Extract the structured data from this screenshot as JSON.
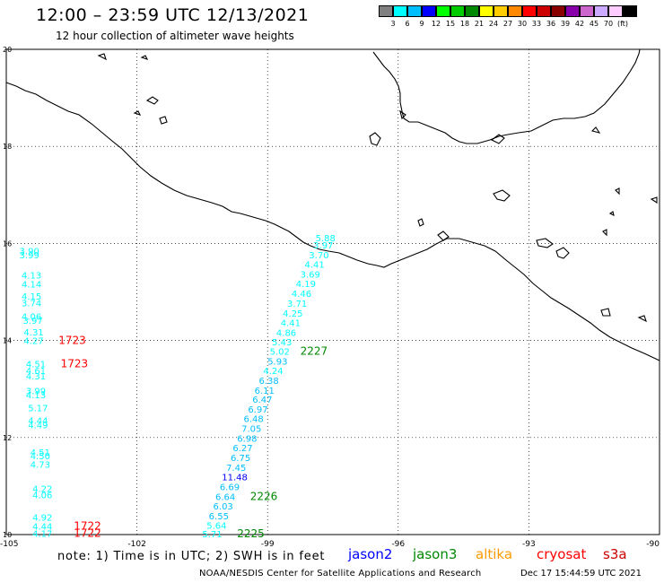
{
  "title": "12:00 – 23:59 UTC 12/13/2021",
  "subtitle": "12 hour collection of altimeter wave heights",
  "colorbar": {
    "colors": [
      "#808080",
      "#00ffff",
      "#00bfff",
      "#0000ff",
      "#00ff00",
      "#00cc00",
      "#008800",
      "#ffff00",
      "#ffcc00",
      "#ff8800",
      "#ff0000",
      "#cc0000",
      "#880000",
      "#8800aa",
      "#cc66cc",
      "#ccaaff",
      "#ffccff",
      "#000000"
    ],
    "labels": [
      "3",
      "6",
      "9",
      "12",
      "15",
      "18",
      "21",
      "24",
      "27",
      "30",
      "33",
      "36",
      "39",
      "42",
      "45",
      "70",
      "(ft)"
    ]
  },
  "map": {
    "lat_labels": [
      "20",
      "18",
      "16",
      "14",
      "12",
      "10"
    ],
    "lon_labels": [
      "-105",
      "-102",
      "-99",
      "-96",
      "-93",
      "-90"
    ],
    "lat_values": [
      20,
      18,
      16,
      14,
      12,
      10
    ],
    "lon_values": [
      -105,
      -102,
      -99,
      -96,
      -93,
      -90
    ]
  },
  "observations": [
    {
      "text": "3.90",
      "lat": 15.85,
      "lon": -104.7,
      "color": "#00ffff"
    },
    {
      "text": "3.99",
      "lat": 15.77,
      "lon": -104.7,
      "color": "#00ffff"
    },
    {
      "text": "4.13",
      "lat": 15.35,
      "lon": -104.65,
      "color": "#00ffff"
    },
    {
      "text": "4.14",
      "lat": 15.17,
      "lon": -104.65,
      "color": "#00ffff"
    },
    {
      "text": "4.15",
      "lat": 14.92,
      "lon": -104.65,
      "color": "#00ffff"
    },
    {
      "text": "3.74",
      "lat": 14.78,
      "lon": -104.65,
      "color": "#00ffff"
    },
    {
      "text": "4.06",
      "lat": 14.5,
      "lon": -104.65,
      "color": "#00ffff"
    },
    {
      "text": "3.97",
      "lat": 14.42,
      "lon": -104.62,
      "color": "#00ffff"
    },
    {
      "text": "4.31",
      "lat": 14.18,
      "lon": -104.6,
      "color": "#00ffff"
    },
    {
      "text": "4.27",
      "lat": 14.0,
      "lon": -104.6,
      "color": "#00ffff"
    },
    {
      "text": "1723",
      "lat": 14.0,
      "lon": -103.8,
      "color": "#ff0000"
    },
    {
      "text": "4.51",
      "lat": 13.52,
      "lon": -104.55,
      "color": "#00ffff"
    },
    {
      "text": "1723",
      "lat": 13.52,
      "lon": -103.75,
      "color": "#ff0000"
    },
    {
      "text": "4.61",
      "lat": 13.38,
      "lon": -104.55,
      "color": "#00ffff"
    },
    {
      "text": "4.31",
      "lat": 13.27,
      "lon": -104.55,
      "color": "#00ffff"
    },
    {
      "text": "3.99",
      "lat": 12.97,
      "lon": -104.55,
      "color": "#00ffff"
    },
    {
      "text": "4.13",
      "lat": 12.88,
      "lon": -104.55,
      "color": "#00ffff"
    },
    {
      "text": "5.17",
      "lat": 12.62,
      "lon": -104.5,
      "color": "#00ffff"
    },
    {
      "text": "4.44",
      "lat": 12.36,
      "lon": -104.5,
      "color": "#00ffff"
    },
    {
      "text": "4.49",
      "lat": 12.26,
      "lon": -104.5,
      "color": "#00ffff"
    },
    {
      "text": "4.51",
      "lat": 11.7,
      "lon": -104.45,
      "color": "#00ffff"
    },
    {
      "text": "4.50",
      "lat": 11.63,
      "lon": -104.45,
      "color": "#00ffff"
    },
    {
      "text": "4.73",
      "lat": 11.45,
      "lon": -104.45,
      "color": "#00ffff"
    },
    {
      "text": "4.22",
      "lat": 10.95,
      "lon": -104.4,
      "color": "#00ffff"
    },
    {
      "text": "4.06",
      "lat": 10.82,
      "lon": -104.4,
      "color": "#00ffff"
    },
    {
      "text": "4.92",
      "lat": 10.36,
      "lon": -104.4,
      "color": "#00ffff"
    },
    {
      "text": "4.44",
      "lat": 10.18,
      "lon": -104.4,
      "color": "#00ffff"
    },
    {
      "text": "1722",
      "lat": 10.18,
      "lon": -103.45,
      "color": "#ff0000"
    },
    {
      "text": "4.17",
      "lat": 10.03,
      "lon": -104.4,
      "color": "#00ffff"
    },
    {
      "text": "1722",
      "lat": 10.03,
      "lon": -103.45,
      "color": "#ff0000"
    },
    {
      "text": "5.88",
      "lat": 16.12,
      "lon": -97.9,
      "color": "#00ffff"
    },
    {
      "text": "3.97",
      "lat": 15.97,
      "lon": -97.95,
      "color": "#00ffff"
    },
    {
      "text": "3.70",
      "lat": 15.77,
      "lon": -98.05,
      "color": "#00ffff"
    },
    {
      "text": "4.41",
      "lat": 15.57,
      "lon": -98.15,
      "color": "#00ffff"
    },
    {
      "text": "3.69",
      "lat": 15.37,
      "lon": -98.25,
      "color": "#00ffff"
    },
    {
      "text": "4.19",
      "lat": 15.18,
      "lon": -98.35,
      "color": "#00ffff"
    },
    {
      "text": "4.46",
      "lat": 14.97,
      "lon": -98.45,
      "color": "#00ffff"
    },
    {
      "text": "3.71",
      "lat": 14.77,
      "lon": -98.55,
      "color": "#00ffff"
    },
    {
      "text": "4.25",
      "lat": 14.57,
      "lon": -98.65,
      "color": "#00ffff"
    },
    {
      "text": "4.41",
      "lat": 14.37,
      "lon": -98.7,
      "color": "#00ffff"
    },
    {
      "text": "4.86",
      "lat": 14.17,
      "lon": -98.8,
      "color": "#00ffff"
    },
    {
      "text": "5.43",
      "lat": 13.97,
      "lon": -98.9,
      "color": "#00ffff"
    },
    {
      "text": "5.02",
      "lat": 13.78,
      "lon": -98.95,
      "color": "#00ffff"
    },
    {
      "text": "2227",
      "lat": 13.78,
      "lon": -98.25,
      "color": "#008800"
    },
    {
      "text": "5.93",
      "lat": 13.58,
      "lon": -99.0,
      "color": "#00bfff"
    },
    {
      "text": "4.24",
      "lat": 13.38,
      "lon": -99.1,
      "color": "#00ffff"
    },
    {
      "text": "6.38",
      "lat": 13.18,
      "lon": -99.2,
      "color": "#00bfff"
    },
    {
      "text": "6.11",
      "lat": 12.98,
      "lon": -99.3,
      "color": "#00bfff"
    },
    {
      "text": "6.47",
      "lat": 12.79,
      "lon": -99.35,
      "color": "#00bfff"
    },
    {
      "text": "6.97",
      "lat": 12.59,
      "lon": -99.45,
      "color": "#00bfff"
    },
    {
      "text": "6.48",
      "lat": 12.39,
      "lon": -99.55,
      "color": "#00bfff"
    },
    {
      "text": "7.05",
      "lat": 12.19,
      "lon": -99.6,
      "color": "#00bfff"
    },
    {
      "text": "6.98",
      "lat": 11.99,
      "lon": -99.7,
      "color": "#00bfff"
    },
    {
      "text": "6.27",
      "lat": 11.79,
      "lon": -99.8,
      "color": "#00bfff"
    },
    {
      "text": "6.75",
      "lat": 11.59,
      "lon": -99.85,
      "color": "#00bfff"
    },
    {
      "text": "7.45",
      "lat": 11.39,
      "lon": -99.95,
      "color": "#00bfff"
    },
    {
      "text": "11.48",
      "lat": 11.19,
      "lon": -100.05,
      "color": "#0000ff"
    },
    {
      "text": "6.69",
      "lat": 10.99,
      "lon": -100.1,
      "color": "#00bfff"
    },
    {
      "text": "6.64",
      "lat": 10.79,
      "lon": -100.2,
      "color": "#00bfff"
    },
    {
      "text": "2226",
      "lat": 10.79,
      "lon": -99.4,
      "color": "#008800"
    },
    {
      "text": "6.03",
      "lat": 10.59,
      "lon": -100.25,
      "color": "#00bfff"
    },
    {
      "text": "6.55",
      "lat": 10.39,
      "lon": -100.35,
      "color": "#00bfff"
    },
    {
      "text": "5.64",
      "lat": 10.19,
      "lon": -100.4,
      "color": "#00ffff"
    },
    {
      "text": "5.71",
      "lat": 10.02,
      "lon": -100.5,
      "color": "#00ffff"
    },
    {
      "text": "2225",
      "lat": 10.02,
      "lon": -99.7,
      "color": "#008800"
    }
  ],
  "footer": {
    "note": "note: 1) Time is in UTC; 2) SWH is in feet",
    "satellites": [
      {
        "name": "jason2",
        "color": "#0000ff"
      },
      {
        "name": "jason3",
        "color": "#008800"
      },
      {
        "name": "altika",
        "color": "#ff9900"
      },
      {
        "name": "cryosat",
        "color": "#ff0000"
      },
      {
        "name": "s3a",
        "color": "#cc0000"
      }
    ],
    "credit": "NOAA/NESDIS Center for Satellite Applications and Research",
    "timestamp": "Dec 17 15:44:59 UTC 2021"
  }
}
